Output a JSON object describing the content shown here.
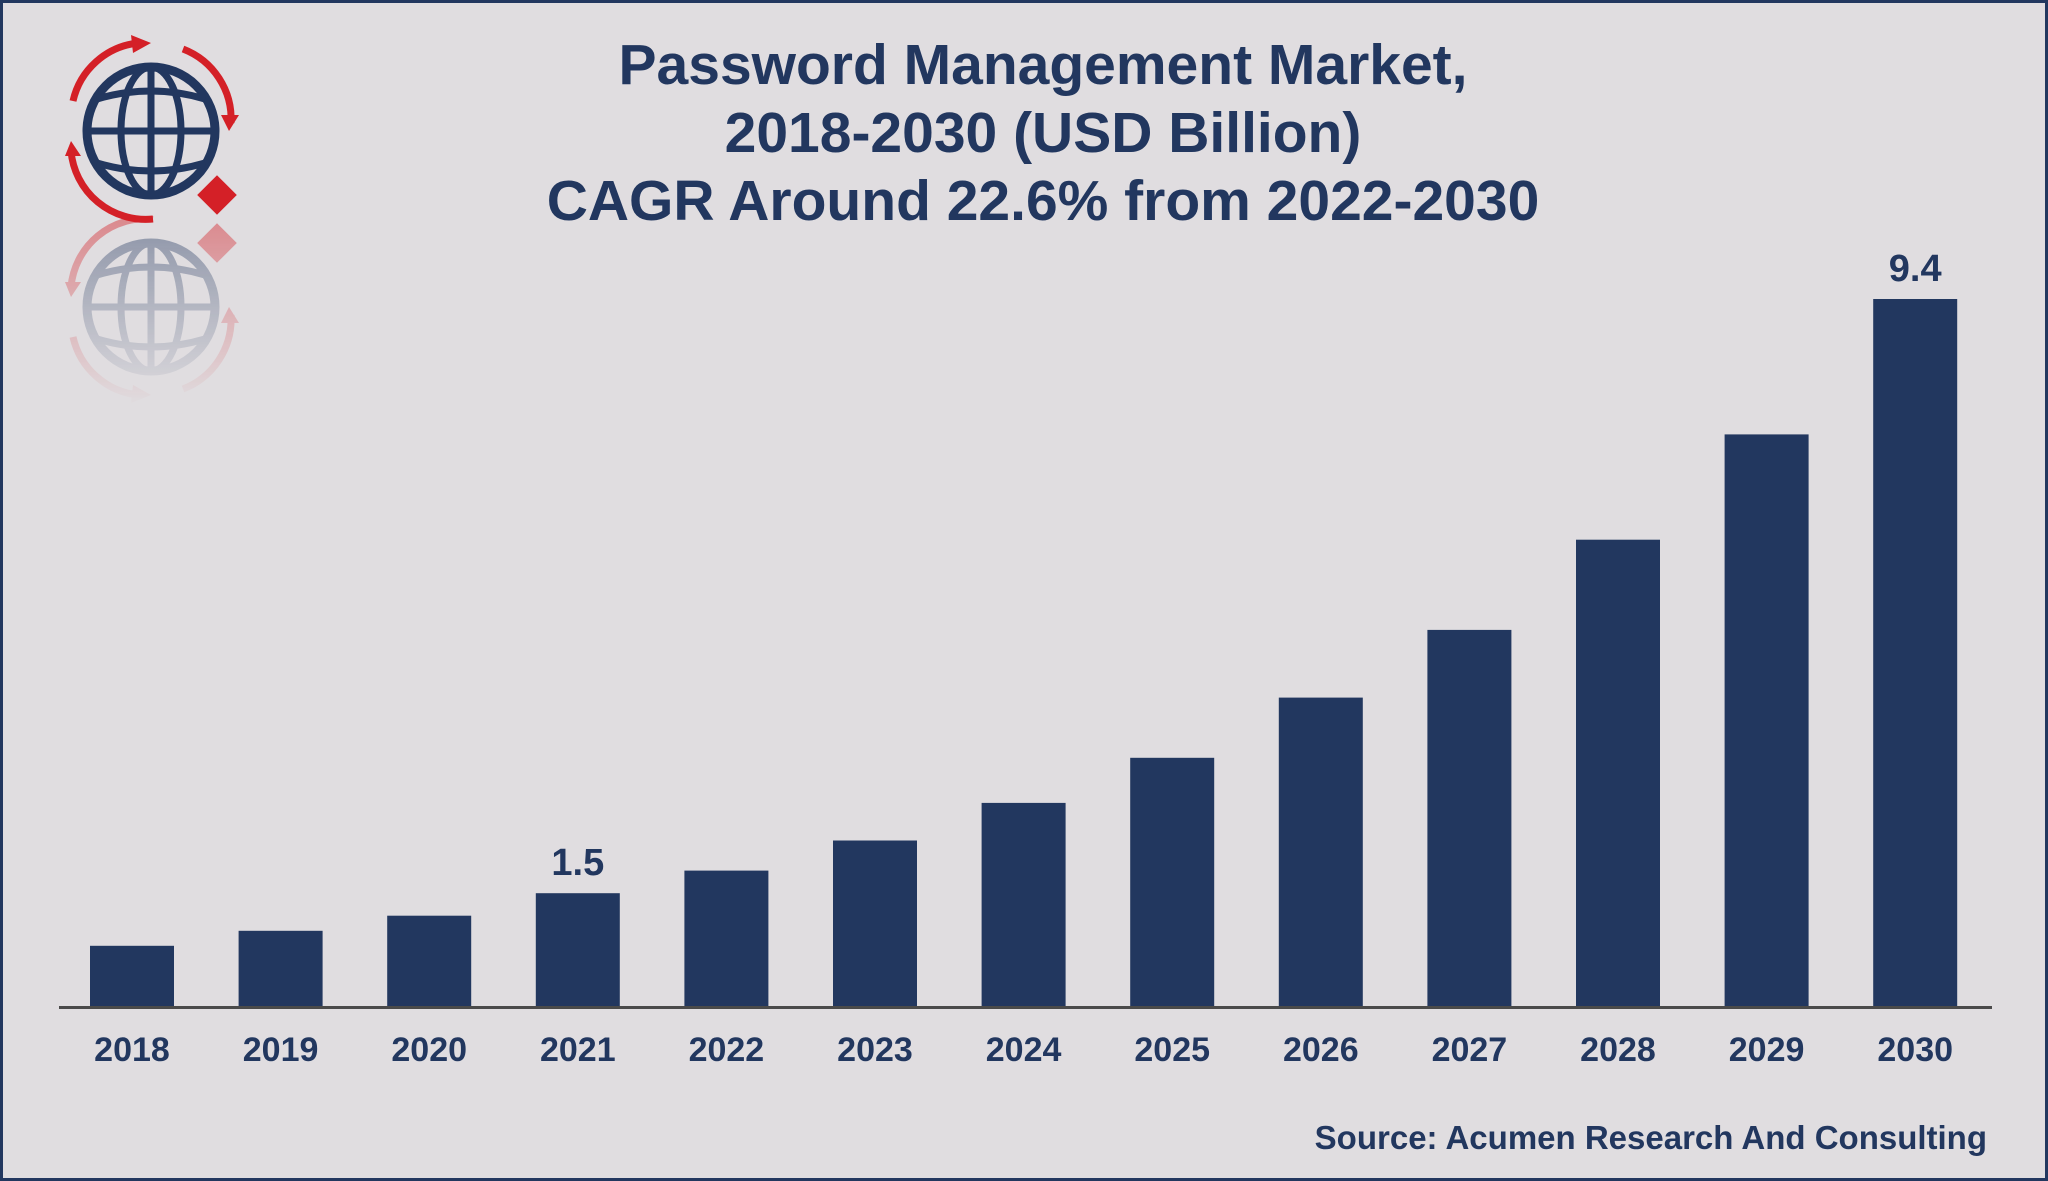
{
  "title_lines": [
    "Password Management Market,",
    "2018-2030 (USD Billion)",
    "CAGR Around 22.6% from 2022-2030"
  ],
  "source": "Source: Acumen Research And Consulting",
  "logo": {
    "icon": "globe-logo-icon",
    "colors": {
      "globe": "#22375f",
      "arrows": "#d42027"
    }
  },
  "colors": {
    "background": "#e0dde0",
    "bar": "#22375f",
    "text": "#22375f",
    "axis": "#4a4a4a"
  },
  "chart_data": {
    "type": "bar",
    "title": "Password Management Market, 2018-2030 (USD Billion) CAGR Around 22.6% from 2022-2030",
    "xlabel": "",
    "ylabel": "",
    "categories": [
      "2018",
      "2019",
      "2020",
      "2021",
      "2022",
      "2023",
      "2024",
      "2025",
      "2026",
      "2027",
      "2028",
      "2029",
      "2030"
    ],
    "values": [
      0.8,
      1.0,
      1.2,
      1.5,
      1.8,
      2.2,
      2.7,
      3.3,
      4.1,
      5.0,
      6.2,
      7.6,
      9.4
    ],
    "data_labels": [
      {
        "category": "2021",
        "text": "1.5"
      },
      {
        "category": "2030",
        "text": "9.4"
      }
    ],
    "ylim": [
      0,
      9.4
    ],
    "grid": false,
    "legend": "none"
  }
}
